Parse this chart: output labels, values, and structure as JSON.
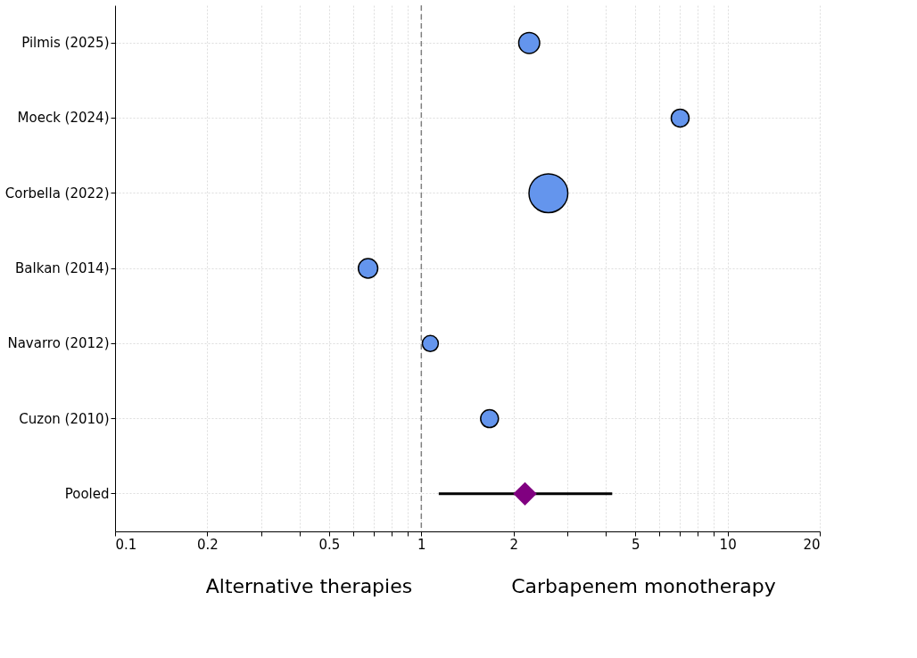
{
  "chart_data": {
    "type": "bubble",
    "orientation": "horizontal",
    "categories": [
      "Pilmis (2025)",
      "Moeck (2024)",
      "Corbella (2022)",
      "Balkan (2014)",
      "Navarro (2012)",
      "Cuzon (2010)",
      "Pooled"
    ],
    "series": [
      {
        "color": "#6495ed",
        "values": [
          2.25,
          7.0,
          2.6,
          0.67,
          1.07,
          1.67,
          null
        ],
        "sizes": [
          0.29,
          0.21,
          1,
          0.25,
          0.17,
          0.21,
          null
        ]
      },
      {
        "type": "scatter",
        "marker": "diamond",
        "color": "#800080",
        "values": [
          null,
          null,
          null,
          null,
          null,
          null,
          2.18
        ],
        "errors": [
          null,
          null,
          null,
          null,
          null,
          null,
          [
            1.14,
            4.2
          ]
        ]
      }
    ],
    "log": "x",
    "xlim": [
      0.1,
      20
    ],
    "xticks": [
      0.1,
      0.2,
      {
        "value": 0.3,
        "label": null
      },
      {
        "value": 0.4,
        "label": null
      },
      0.5,
      {
        "value": 0.6,
        "label": null
      },
      {
        "value": 0.7,
        "label": null
      },
      {
        "value": 0.8,
        "label": null
      },
      {
        "value": 0.9,
        "label": null
      },
      1,
      2,
      {
        "value": 3,
        "label": null
      },
      {
        "value": 4,
        "label": null
      },
      5,
      {
        "value": 6,
        "label": null
      },
      {
        "value": 7,
        "label": null
      },
      {
        "value": 8,
        "label": null
      },
      {
        "value": 9,
        "label": null
      },
      10,
      20
    ],
    "grid": true,
    "ref_lines": [
      {
        "axis": "x",
        "value": 1,
        "color": "#808080",
        "line_style": "dashed"
      }
    ],
    "annotations": [
      "Alternative therapies",
      "Carbapenem monotherapy"
    ]
  }
}
